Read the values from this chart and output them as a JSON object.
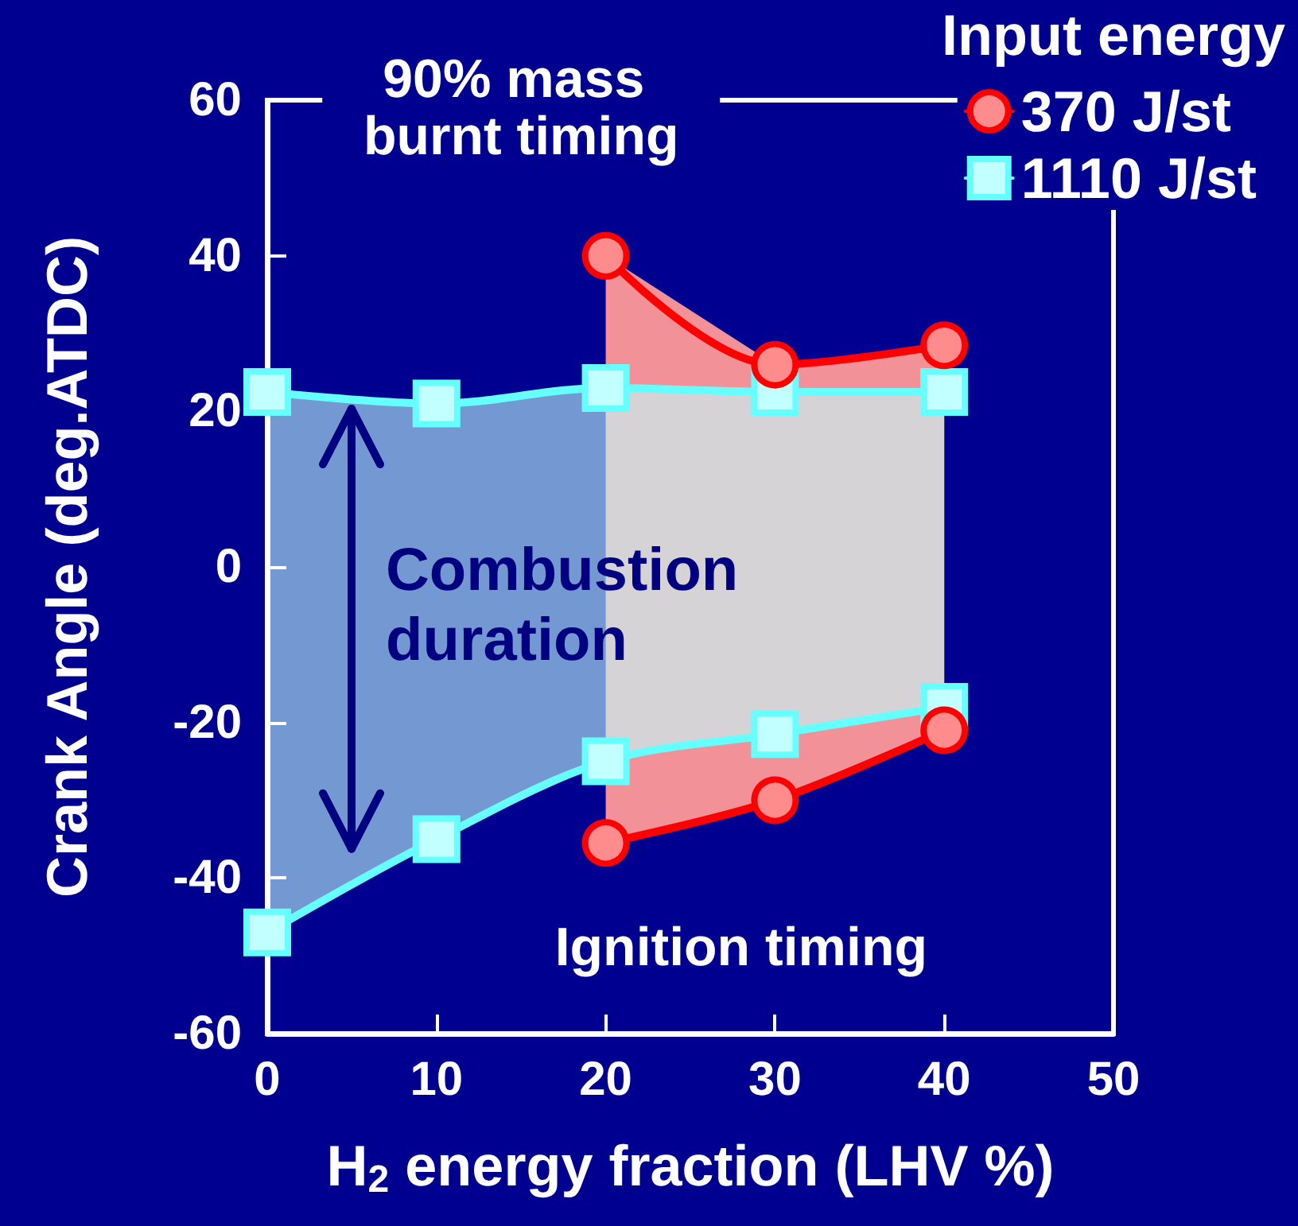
{
  "chart_data": {
    "type": "line",
    "xlabel": "H$_{2}$ energy fraction (LHV %)",
    "ylabel": "Crank Angle (deg.ATDC)",
    "legend_title": "Input energy",
    "legend": "top right",
    "grid": false,
    "xlim": [
      0,
      50
    ],
    "xticks": [
      0,
      10,
      20,
      30,
      40,
      50
    ],
    "ylim": [
      -60,
      60
    ],
    "yticks": [
      -60,
      -40,
      -20,
      0,
      20,
      40,
      60
    ],
    "series": [
      {
        "name": "370 J/st",
        "color": "#ff0000",
        "marker": "circle",
        "x": [
          20,
          30,
          40
        ],
        "values": [
          40,
          26,
          28.5
        ]
      },
      {
        "color": "#ff0000",
        "marker": "circle",
        "x": [
          20,
          30,
          40
        ],
        "values": [
          -35.5,
          -30,
          -21
        ]
      },
      {
        "name": "1110 J/st",
        "color": "#66ffff",
        "marker": "square",
        "x": [
          0,
          10,
          20,
          30,
          40
        ],
        "values": [
          22.5,
          21,
          23,
          22.5,
          22.5
        ]
      },
      {
        "color": "#66ffff",
        "marker": "square",
        "x": [
          0,
          10,
          20,
          30,
          40
        ],
        "values": [
          -47,
          -35,
          -25,
          -21.5,
          -18
        ]
      }
    ],
    "annotations": [
      "90% mass burnt timing",
      "Combustion duration",
      "Ignition timing"
    ]
  }
}
